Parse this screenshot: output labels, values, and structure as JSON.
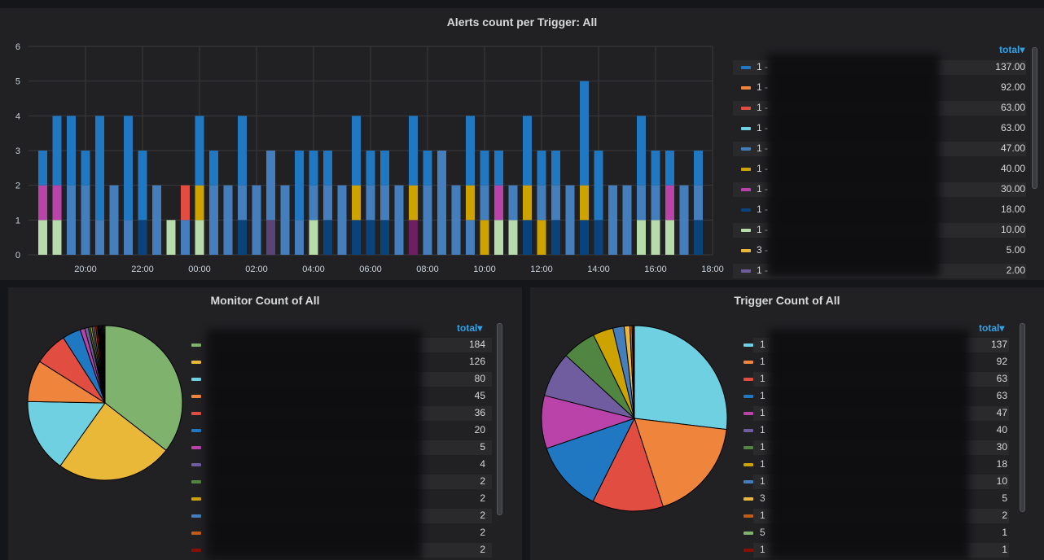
{
  "colors": {
    "panel_bg": "#212124",
    "accent": "#33a2e5",
    "grid": "#3a3a3d",
    "series": [
      "#1f78c1",
      "#ef843c",
      "#e24d42",
      "#6ed0e0",
      "#447ebc",
      "#cca300",
      "#ba43a9",
      "#0a437c",
      "#b7dbab",
      "#eab839",
      "#705da0",
      "#508642",
      "#584477",
      "#6d1f62"
    ]
  },
  "top_panel": {
    "title": "Alerts count per Trigger: All",
    "legend_header": "total",
    "legend": [
      {
        "label": "1 -",
        "value": "137.00",
        "color": "#1f78c1"
      },
      {
        "label": "1 -",
        "value": "92.00",
        "color": "#ef843c"
      },
      {
        "label": "1 -",
        "value": "63.00",
        "color": "#e24d42"
      },
      {
        "label": "1 -",
        "value": "63.00",
        "color": "#6ed0e0"
      },
      {
        "label": "1 -",
        "value": "47.00",
        "color": "#447ebc"
      },
      {
        "label": "1 -",
        "value": "40.00",
        "color": "#cca300"
      },
      {
        "label": "1 -",
        "value": "30.00",
        "color": "#ba43a9"
      },
      {
        "label": "1 -",
        "value": "18.00",
        "color": "#0a437c"
      },
      {
        "label": "1 -",
        "value": "10.00",
        "color": "#b7dbab"
      },
      {
        "label": "3 -",
        "value": "5.00",
        "color": "#eab839"
      },
      {
        "label": "1 -",
        "value": "2.00",
        "color": "#705da0"
      }
    ]
  },
  "bottom_left": {
    "title": "Monitor Count of All",
    "legend_header": "total",
    "legend": [
      {
        "label": "",
        "value": "184",
        "color": "#7eb26d"
      },
      {
        "label": "",
        "value": "126",
        "color": "#eab839"
      },
      {
        "label": "",
        "value": "80",
        "color": "#6ed0e0"
      },
      {
        "label": "",
        "value": "45",
        "color": "#ef843c"
      },
      {
        "label": "",
        "value": "36",
        "color": "#e24d42"
      },
      {
        "label": "",
        "value": "20",
        "color": "#1f78c1"
      },
      {
        "label": "",
        "value": "5",
        "color": "#ba43a9"
      },
      {
        "label": "",
        "value": "4",
        "color": "#705da0"
      },
      {
        "label": "",
        "value": "2",
        "color": "#508642"
      },
      {
        "label": "",
        "value": "2",
        "color": "#cca300"
      },
      {
        "label": "",
        "value": "2",
        "color": "#447ebc"
      },
      {
        "label": "",
        "value": "2",
        "color": "#c15c17"
      },
      {
        "label": "",
        "value": "2",
        "color": "#890f02"
      }
    ]
  },
  "bottom_right": {
    "title": "Trigger Count of All",
    "legend_header": "total",
    "legend": [
      {
        "label": "1",
        "value": "137",
        "color": "#6ed0e0"
      },
      {
        "label": "1",
        "value": "92",
        "color": "#ef843c"
      },
      {
        "label": "1",
        "value": "63",
        "color": "#e24d42"
      },
      {
        "label": "1",
        "value": "63",
        "color": "#1f78c1"
      },
      {
        "label": "1",
        "value": "47",
        "color": "#ba43a9"
      },
      {
        "label": "1",
        "value": "40",
        "color": "#705da0"
      },
      {
        "label": "1",
        "value": "30",
        "color": "#508642"
      },
      {
        "label": "1",
        "value": "18",
        "color": "#cca300"
      },
      {
        "label": "1",
        "value": "10",
        "color": "#447ebc"
      },
      {
        "label": "3",
        "value": "5",
        "color": "#eab839"
      },
      {
        "label": "1",
        "value": "2",
        "color": "#c15c17"
      },
      {
        "label": "5",
        "value": "1",
        "color": "#7eb26d"
      },
      {
        "label": "1",
        "value": "1",
        "color": "#890f02"
      }
    ]
  },
  "chart_data": [
    {
      "type": "bar",
      "stacked": true,
      "title": "Alerts count per Trigger: All",
      "x_tick_labels": [
        "20:00",
        "22:00",
        "00:00",
        "02:00",
        "04:00",
        "06:00",
        "08:00",
        "10:00",
        "12:00",
        "14:00",
        "16:00",
        "18:00"
      ],
      "x_range_hours": [
        18.0,
        42.0
      ],
      "ylim": [
        0,
        6
      ],
      "y_ticks": [
        0,
        1,
        2,
        3,
        4,
        5,
        6
      ],
      "grid": true,
      "legend_position": "right",
      "series_colors": [
        "#1f78c1",
        "#ef843c",
        "#e24d42",
        "#6ed0e0",
        "#447ebc",
        "#cca300",
        "#ba43a9",
        "#0a437c",
        "#b7dbab",
        "#eab839",
        "#705da0",
        "#508642",
        "#584477",
        "#6d1f62"
      ],
      "bars": [
        {
          "t": 18.5,
          "stack": [
            [
              8,
              1
            ],
            [
              6,
              1
            ],
            [
              0,
              1
            ]
          ]
        },
        {
          "t": 19.0,
          "stack": [
            [
              8,
              1
            ],
            [
              6,
              1
            ],
            [
              0,
              2
            ]
          ]
        },
        {
          "t": 19.5,
          "stack": [
            [
              4,
              2
            ],
            [
              0,
              2
            ]
          ]
        },
        {
          "t": 20.0,
          "stack": [
            [
              4,
              2
            ],
            [
              0,
              1
            ]
          ]
        },
        {
          "t": 20.5,
          "stack": [
            [
              4,
              1
            ],
            [
              0,
              3
            ]
          ]
        },
        {
          "t": 21.0,
          "stack": [
            [
              4,
              2
            ]
          ]
        },
        {
          "t": 21.5,
          "stack": [
            [
              4,
              1
            ],
            [
              0,
              3
            ]
          ]
        },
        {
          "t": 22.0,
          "stack": [
            [
              7,
              1
            ],
            [
              0,
              2
            ]
          ]
        },
        {
          "t": 22.5,
          "stack": [
            [
              4,
              2
            ]
          ]
        },
        {
          "t": 23.0,
          "stack": [
            [
              8,
              1
            ]
          ]
        },
        {
          "t": 23.5,
          "stack": [
            [
              4,
              1
            ],
            [
              2,
              1
            ]
          ]
        },
        {
          "t": 24.0,
          "stack": [
            [
              8,
              1
            ],
            [
              5,
              1
            ],
            [
              0,
              2
            ]
          ]
        },
        {
          "t": 24.5,
          "stack": [
            [
              4,
              2
            ],
            [
              0,
              1
            ]
          ]
        },
        {
          "t": 25.0,
          "stack": [
            [
              4,
              2
            ]
          ]
        },
        {
          "t": 25.5,
          "stack": [
            [
              7,
              1
            ],
            [
              4,
              1
            ],
            [
              0,
              2
            ]
          ]
        },
        {
          "t": 26.0,
          "stack": [
            [
              4,
              2
            ]
          ]
        },
        {
          "t": 26.5,
          "stack": [
            [
              12,
              1
            ],
            [
              4,
              2
            ]
          ]
        },
        {
          "t": 27.0,
          "stack": [
            [
              4,
              2
            ]
          ]
        },
        {
          "t": 27.5,
          "stack": [
            [
              4,
              1
            ],
            [
              0,
              2
            ]
          ]
        },
        {
          "t": 28.0,
          "stack": [
            [
              8,
              1
            ],
            [
              4,
              1
            ],
            [
              0,
              1
            ]
          ]
        },
        {
          "t": 28.5,
          "stack": [
            [
              7,
              1
            ],
            [
              4,
              1
            ],
            [
              0,
              1
            ]
          ]
        },
        {
          "t": 29.0,
          "stack": [
            [
              4,
              2
            ]
          ]
        },
        {
          "t": 29.5,
          "stack": [
            [
              7,
              1
            ],
            [
              5,
              1
            ],
            [
              0,
              2
            ]
          ]
        },
        {
          "t": 30.0,
          "stack": [
            [
              7,
              1
            ],
            [
              4,
              1
            ],
            [
              0,
              1
            ]
          ]
        },
        {
          "t": 30.5,
          "stack": [
            [
              7,
              1
            ],
            [
              4,
              1
            ],
            [
              0,
              1
            ]
          ]
        },
        {
          "t": 31.0,
          "stack": [
            [
              4,
              2
            ]
          ]
        },
        {
          "t": 31.5,
          "stack": [
            [
              13,
              1
            ],
            [
              5,
              1
            ],
            [
              0,
              2
            ]
          ]
        },
        {
          "t": 32.0,
          "stack": [
            [
              4,
              2
            ],
            [
              0,
              1
            ]
          ]
        },
        {
          "t": 32.5,
          "stack": [
            [
              4,
              3
            ]
          ]
        },
        {
          "t": 33.0,
          "stack": [
            [
              4,
              2
            ]
          ]
        },
        {
          "t": 33.5,
          "stack": [
            [
              4,
              1
            ],
            [
              5,
              1
            ],
            [
              0,
              2
            ]
          ]
        },
        {
          "t": 34.0,
          "stack": [
            [
              5,
              1
            ],
            [
              4,
              1
            ],
            [
              0,
              1
            ]
          ]
        },
        {
          "t": 34.5,
          "stack": [
            [
              8,
              1
            ],
            [
              6,
              1
            ],
            [
              0,
              1
            ]
          ]
        },
        {
          "t": 35.0,
          "stack": [
            [
              8,
              1
            ],
            [
              4,
              1
            ]
          ]
        },
        {
          "t": 35.5,
          "stack": [
            [
              7,
              1
            ],
            [
              5,
              1
            ],
            [
              0,
              2
            ]
          ]
        },
        {
          "t": 36.0,
          "stack": [
            [
              5,
              1
            ],
            [
              4,
              1
            ],
            [
              0,
              1
            ]
          ]
        },
        {
          "t": 36.5,
          "stack": [
            [
              7,
              1
            ],
            [
              4,
              1
            ],
            [
              0,
              1
            ]
          ]
        },
        {
          "t": 37.0,
          "stack": [
            [
              4,
              2
            ]
          ]
        },
        {
          "t": 37.5,
          "stack": [
            [
              7,
              1
            ],
            [
              5,
              1
            ],
            [
              0,
              3
            ]
          ]
        },
        {
          "t": 38.0,
          "stack": [
            [
              7,
              1
            ],
            [
              0,
              2
            ]
          ]
        },
        {
          "t": 38.5,
          "stack": [
            [
              4,
              2
            ]
          ]
        },
        {
          "t": 39.0,
          "stack": [
            [
              4,
              2
            ]
          ]
        },
        {
          "t": 39.5,
          "stack": [
            [
              8,
              1
            ],
            [
              4,
              1
            ],
            [
              0,
              2
            ]
          ]
        },
        {
          "t": 40.0,
          "stack": [
            [
              8,
              1
            ],
            [
              4,
              1
            ],
            [
              0,
              1
            ]
          ]
        },
        {
          "t": 40.5,
          "stack": [
            [
              8,
              1
            ],
            [
              6,
              1
            ],
            [
              0,
              1
            ]
          ]
        },
        {
          "t": 41.0,
          "stack": [
            [
              4,
              2
            ]
          ]
        },
        {
          "t": 41.5,
          "stack": [
            [
              7,
              1
            ],
            [
              4,
              1
            ],
            [
              0,
              1
            ]
          ]
        }
      ]
    },
    {
      "type": "pie",
      "title": "Monitor Count of All",
      "values": [
        184,
        126,
        80,
        45,
        36,
        20,
        5,
        4,
        2,
        2,
        2,
        2,
        2,
        1,
        1,
        1,
        1,
        1,
        1,
        1,
        1
      ],
      "colors": [
        "#7eb26d",
        "#eab839",
        "#6ed0e0",
        "#ef843c",
        "#e24d42",
        "#1f78c1",
        "#ba43a9",
        "#705da0",
        "#508642",
        "#cca300",
        "#447ebc",
        "#c15c17",
        "#890f02",
        "#0a437c",
        "#6d1f62",
        "#584477",
        "#b7dbab",
        "#f4d598",
        "#70dbed",
        "#f9ba8f",
        "#f29191"
      ],
      "legend_position": "right"
    },
    {
      "type": "pie",
      "title": "Trigger Count of All",
      "values": [
        137,
        92,
        63,
        63,
        47,
        40,
        30,
        18,
        10,
        5,
        2,
        1,
        1
      ],
      "colors": [
        "#6ed0e0",
        "#ef843c",
        "#e24d42",
        "#1f78c1",
        "#ba43a9",
        "#705da0",
        "#508642",
        "#cca300",
        "#447ebc",
        "#eab839",
        "#c15c17",
        "#7eb26d",
        "#890f02"
      ],
      "legend_position": "right"
    }
  ]
}
